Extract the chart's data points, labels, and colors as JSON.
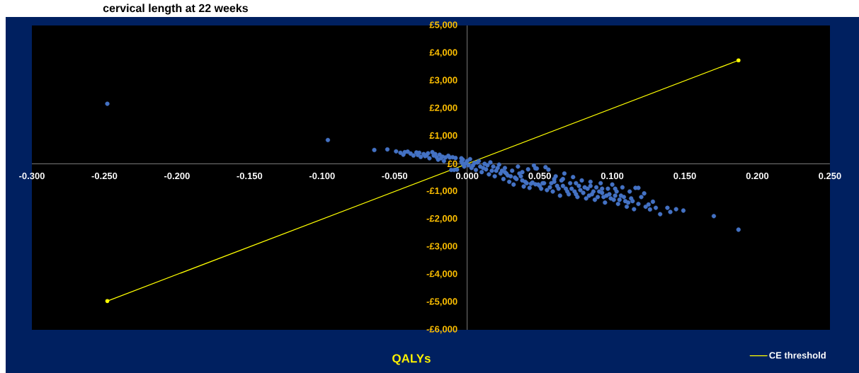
{
  "chart_data": {
    "type": "scatter",
    "title": "cervical length at 22 weeks",
    "xlabel": "QALYs",
    "xlim": [
      -0.3,
      0.25
    ],
    "ylim": [
      -6000,
      5000
    ],
    "xticks": [
      {
        "value": -0.3,
        "label": "-0.300"
      },
      {
        "value": -0.25,
        "label": "-0.250"
      },
      {
        "value": -0.2,
        "label": "-0.200"
      },
      {
        "value": -0.15,
        "label": "-0.150"
      },
      {
        "value": -0.1,
        "label": "-0.100"
      },
      {
        "value": -0.05,
        "label": "-0.050"
      },
      {
        "value": 0,
        "label": "0.000"
      },
      {
        "value": 0.05,
        "label": "0.050"
      },
      {
        "value": 0.1,
        "label": "0.100"
      },
      {
        "value": 0.15,
        "label": "0.150"
      },
      {
        "value": 0.2,
        "label": "0.200"
      },
      {
        "value": 0.25,
        "label": "0.250"
      }
    ],
    "yticks": [
      {
        "value": 5000,
        "label": "£5,000"
      },
      {
        "value": 4000,
        "label": "£4,000"
      },
      {
        "value": 3000,
        "label": "£3,000"
      },
      {
        "value": 2000,
        "label": "£2,000"
      },
      {
        "value": 1000,
        "label": "£1,000"
      },
      {
        "value": 0,
        "label": "£0"
      },
      {
        "value": -1000,
        "label": "-£1,000"
      },
      {
        "value": -2000,
        "label": "-£2,000"
      },
      {
        "value": -3000,
        "label": "-£3,000"
      },
      {
        "value": -4000,
        "label": "-£4,000"
      },
      {
        "value": -5000,
        "label": "-£5,000"
      },
      {
        "value": -6000,
        "label": "-£6,000"
      }
    ],
    "legend": "bottom right",
    "marker": "circle",
    "series": [
      {
        "color": "#4472c4",
        "x": [
          -0.248,
          -0.096,
          -0.064,
          -0.055,
          -0.049,
          -0.046,
          -0.044,
          -0.043,
          -0.041,
          -0.039,
          -0.037,
          -0.035,
          -0.034,
          -0.032,
          -0.03,
          -0.029,
          -0.027,
          -0.026,
          -0.024,
          -0.023,
          -0.021,
          -0.02,
          -0.019,
          -0.017,
          -0.016,
          -0.015,
          -0.013,
          -0.012,
          -0.011,
          -0.01,
          -0.008,
          -0.007,
          -0.004,
          -0.004,
          -0.003,
          -0.002,
          0.0,
          0.001,
          0.002,
          0.003,
          0.005,
          0.006,
          0.008,
          0.009,
          0.01,
          0.012,
          0.013,
          0.015,
          0.016,
          0.018,
          0.019,
          0.02,
          0.022,
          0.023,
          0.025,
          0.026,
          0.028,
          0.029,
          0.031,
          0.032,
          0.033,
          0.035,
          0.036,
          0.038,
          0.039,
          0.041,
          0.042,
          0.043,
          0.045,
          0.046,
          0.048,
          0.049,
          0.051,
          0.052,
          0.054,
          0.055,
          0.056,
          0.058,
          0.059,
          0.061,
          0.062,
          0.064,
          0.065,
          0.067,
          0.068,
          0.07,
          0.071,
          0.073,
          0.074,
          0.076,
          0.077,
          0.079,
          0.08,
          0.082,
          0.083,
          0.085,
          0.086,
          0.088,
          0.089,
          0.091,
          0.092,
          0.094,
          0.095,
          0.097,
          0.098,
          0.1,
          0.101,
          0.103,
          0.104,
          0.106,
          0.107,
          0.109,
          0.11,
          0.112,
          0.113,
          0.115,
          0.116,
          0.118,
          0.118,
          0.12,
          0.122,
          0.123,
          0.125,
          0.126,
          0.128,
          0.13,
          0.133,
          0.138,
          0.14,
          0.144,
          0.149,
          0.17,
          0.187,
          0.004,
          0.007,
          0.011,
          0.014,
          0.017,
          0.021,
          0.024,
          0.027,
          0.03,
          0.034,
          0.037,
          0.04,
          0.044,
          0.047,
          0.05,
          0.053,
          0.057,
          0.06,
          0.063,
          0.066,
          0.069,
          0.072,
          0.075,
          0.078,
          0.081,
          0.084,
          0.087,
          0.09,
          0.093,
          0.096,
          0.099,
          0.102,
          0.105,
          0.108,
          0.111,
          0.114,
          -0.018,
          -0.022,
          -0.028,
          -0.033,
          -0.009,
          -0.003,
          -0.001,
          0.026,
          0.038,
          0.047,
          0.06,
          0.066,
          0.075,
          0.085,
          0.093,
          0.102
        ],
        "values": [
          2170,
          860,
          500,
          520,
          450,
          400,
          330,
          420,
          440,
          370,
          300,
          410,
          320,
          250,
          350,
          280,
          380,
          200,
          420,
          300,
          240,
          150,
          330,
          260,
          100,
          230,
          290,
          230,
          -220,
          240,
          210,
          -210,
          80,
          200,
          0,
          -100,
          100,
          -50,
          170,
          -150,
          30,
          -220,
          100,
          -100,
          -300,
          0,
          -200,
          -380,
          50,
          -100,
          -450,
          -250,
          -30,
          -350,
          -550,
          -150,
          -420,
          -650,
          -250,
          -750,
          -500,
          -100,
          -350,
          -600,
          -820,
          -700,
          -200,
          -870,
          -680,
          -60,
          -170,
          -750,
          -900,
          -700,
          -120,
          -950,
          -210,
          -700,
          -1000,
          -450,
          -800,
          -1150,
          -600,
          -350,
          -900,
          -1100,
          -700,
          -480,
          -1000,
          -1200,
          -800,
          -600,
          -1050,
          -1250,
          -900,
          -650,
          -1100,
          -1300,
          -850,
          -1000,
          -700,
          -1200,
          -1400,
          -900,
          -1100,
          -750,
          -1300,
          -1000,
          -1450,
          -1150,
          -850,
          -1350,
          -1550,
          -1000,
          -1250,
          -1640,
          -870,
          -870,
          -1450,
          -1200,
          -1070,
          -1550,
          -1470,
          -1650,
          -1370,
          -1590,
          -1820,
          -1590,
          -1740,
          -1640,
          -1690,
          -1890,
          -2380,
          -60,
          50,
          -150,
          -50,
          -250,
          -150,
          -250,
          -350,
          -450,
          -550,
          -450,
          -650,
          -720,
          -740,
          -800,
          -700,
          -850,
          -650,
          -900,
          -800,
          -1000,
          -900,
          -1100,
          -950,
          -850,
          -1150,
          -1000,
          -1200,
          -1050,
          -1150,
          -1250,
          -1150,
          -1300,
          -1200,
          -1400,
          -1350,
          200,
          350,
          300,
          400,
          -220,
          150,
          20,
          -300,
          -300,
          -160,
          -550,
          -550,
          -700,
          -800,
          -900,
          -900
        ]
      },
      {
        "name": "CE threshold",
        "type": "line",
        "color": "#ffff00",
        "x": [
          -0.248,
          0.187
        ],
        "values": [
          -4960,
          3740
        ],
        "marker": "circle",
        "line_style": "solid"
      }
    ]
  }
}
